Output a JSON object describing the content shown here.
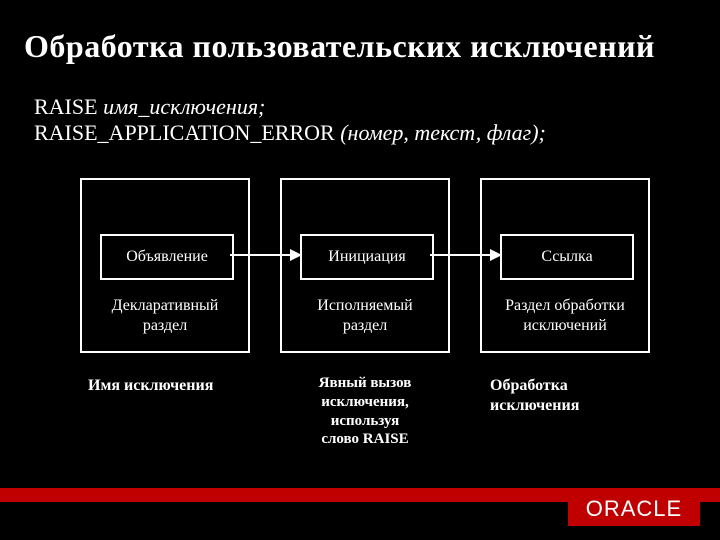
{
  "title": "Обработка пользовательских исключений",
  "code": {
    "line1_pre": "RAISE ",
    "line1_italic": "имя_исключения;",
    "line2_pre": "RAISE_APPLICATION_ERROR ",
    "line2_italic": "(номер, текст, флаг);"
  },
  "diagram": {
    "type": "flowchart",
    "background_color": "#000000",
    "border_color": "#ffffff",
    "text_color": "#ffffff",
    "boxes": [
      {
        "inner_label": "Объявление",
        "section_label": "Декларативный\nраздел"
      },
      {
        "inner_label": "Инициация",
        "section_label": "Исполняемый\nраздел"
      },
      {
        "inner_label": "Ссылка",
        "section_label": "Раздел обработки\nисключений"
      }
    ],
    "captions": [
      "Имя исключения",
      "Явный вызов\n исключения,\nиспользуя\n слово RAISE",
      "Обработка\n исключения"
    ],
    "arrow_color": "#ffffff"
  },
  "footer": {
    "bar_color": "#c00000",
    "brand": "ORACLE"
  }
}
